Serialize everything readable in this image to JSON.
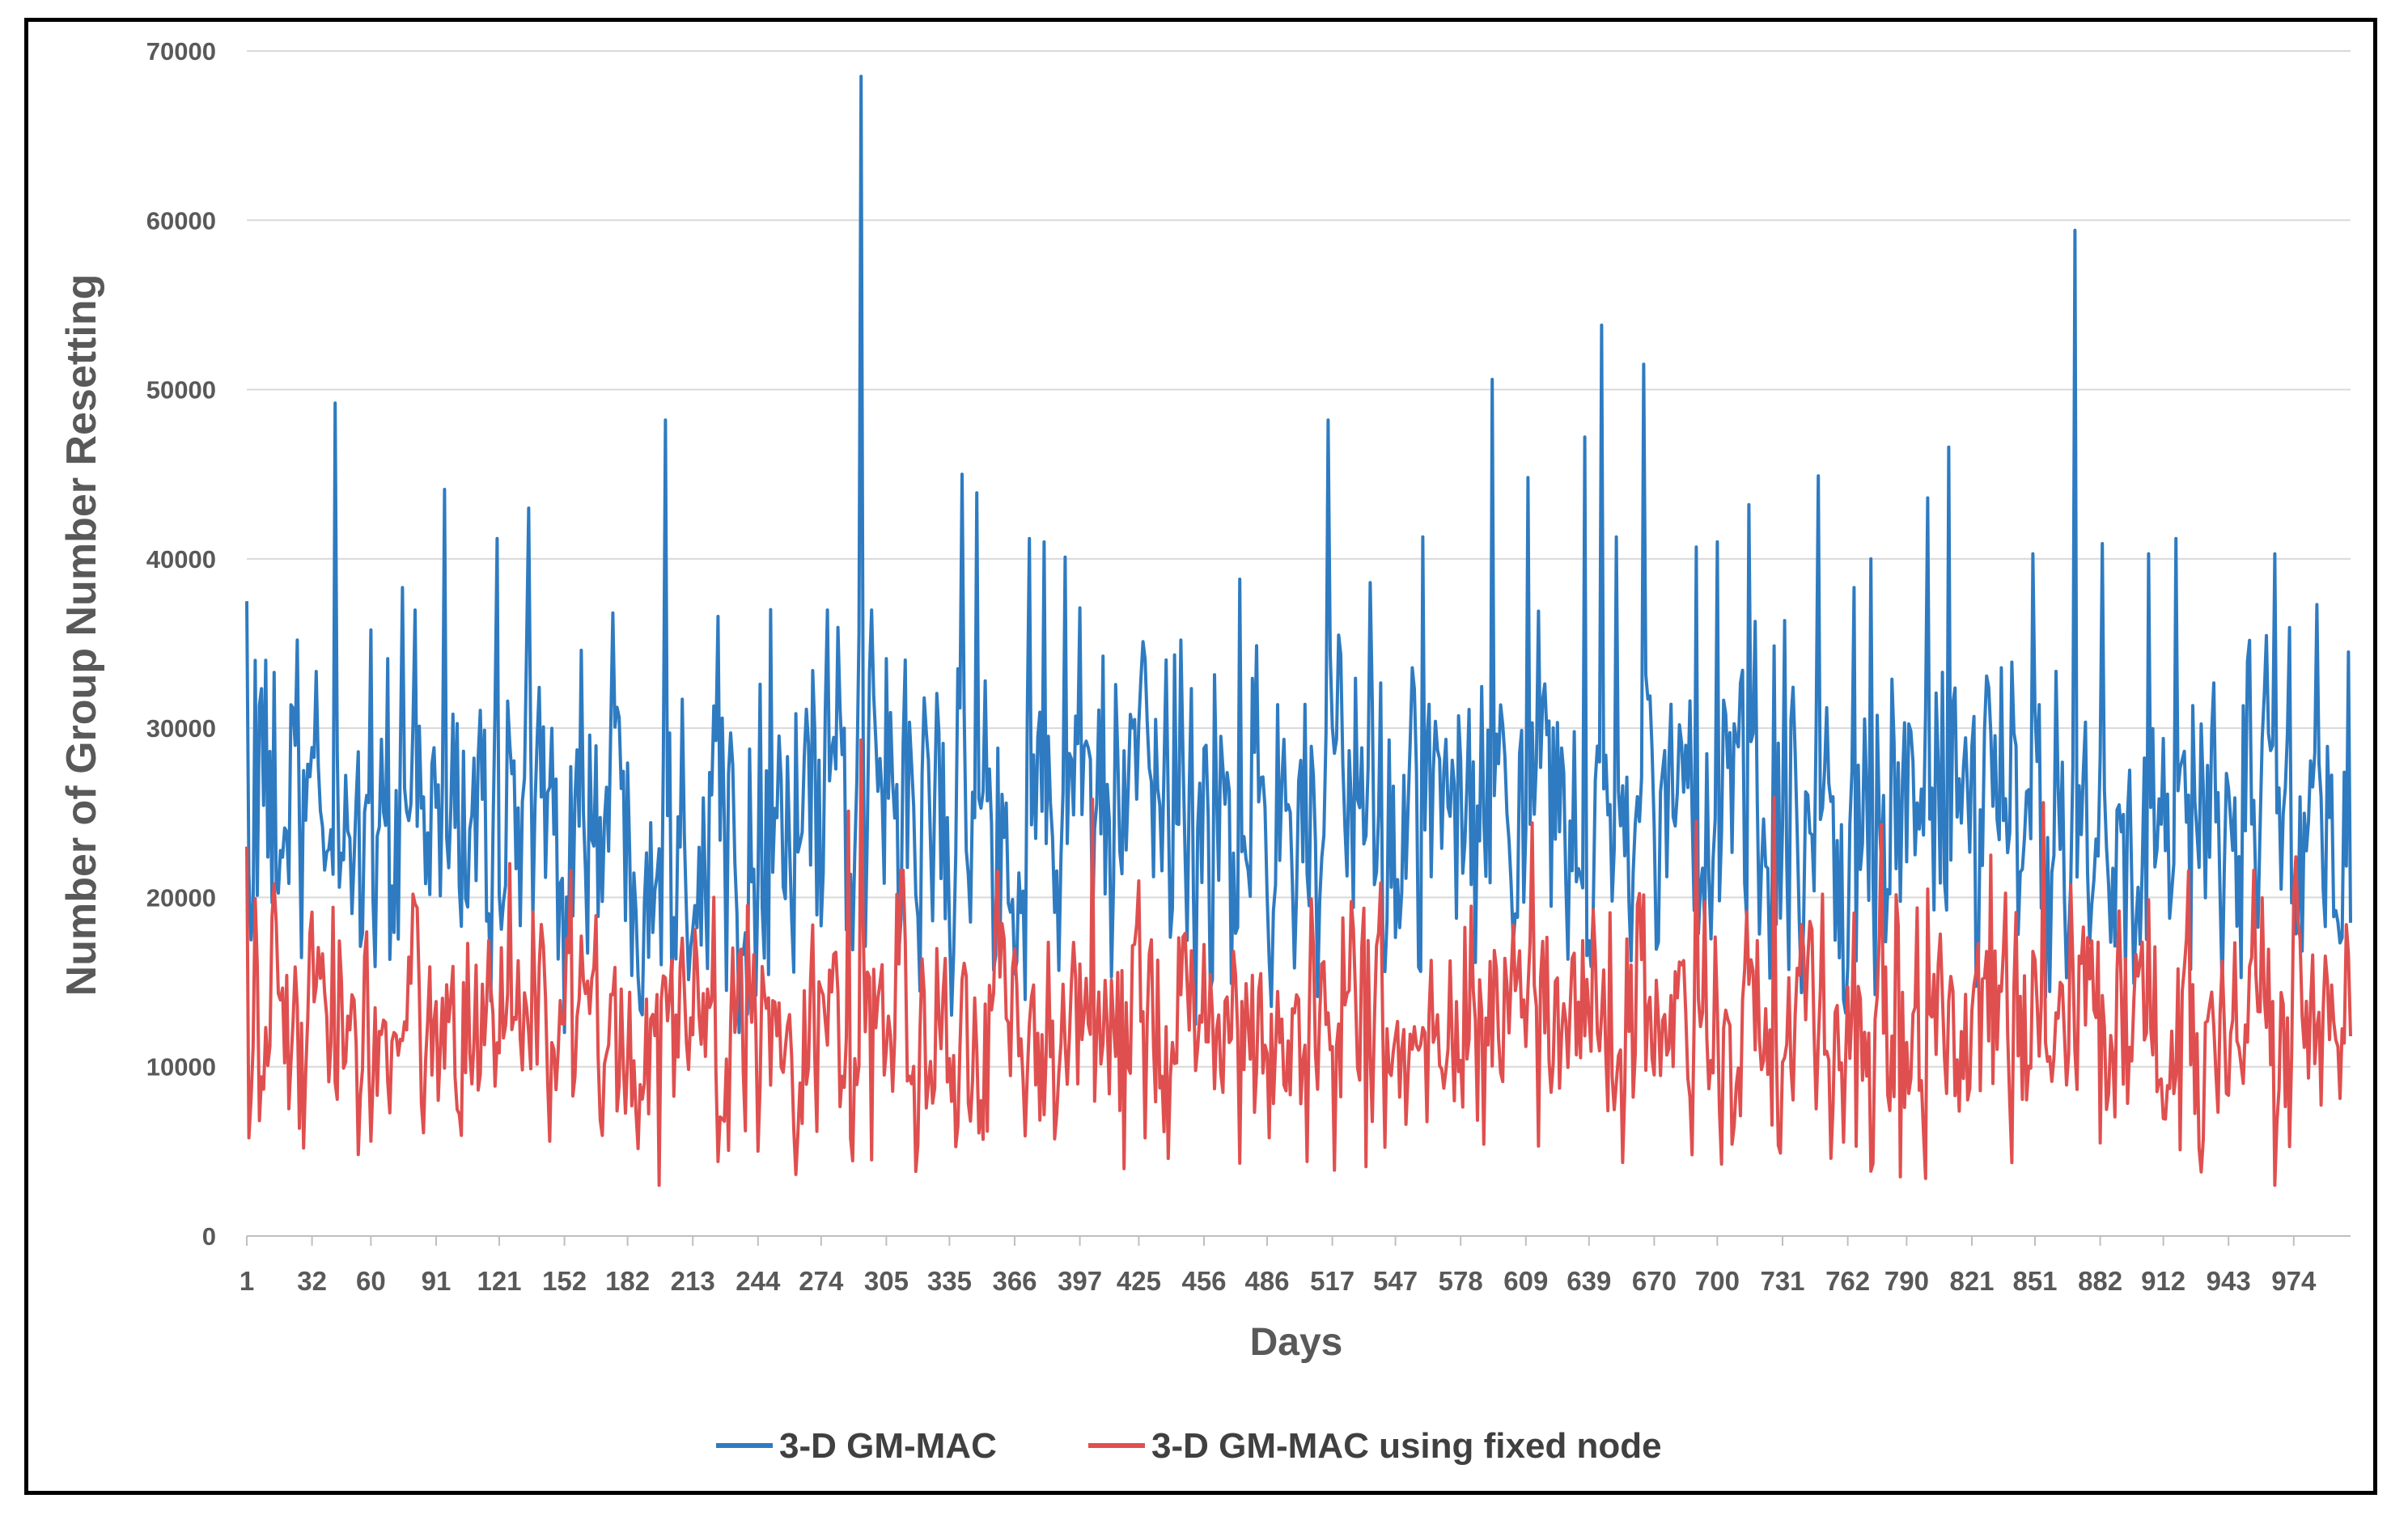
{
  "chart_data": {
    "type": "line",
    "title": "",
    "xlabel": "Days",
    "ylabel": "Number of Group Number Resetting",
    "ylim": [
      0,
      70000
    ],
    "yticks": [
      0,
      10000,
      20000,
      30000,
      40000,
      50000,
      60000,
      70000
    ],
    "xlim": [
      1,
      1000
    ],
    "xtick_labels": [
      "1",
      "32",
      "60",
      "91",
      "121",
      "152",
      "182",
      "213",
      "244",
      "274",
      "305",
      "335",
      "366",
      "397",
      "425",
      "456",
      "486",
      "517",
      "547",
      "578",
      "609",
      "639",
      "670",
      "700",
      "731",
      "762",
      "790",
      "821",
      "851",
      "882",
      "912",
      "943",
      "974"
    ],
    "grid": true,
    "legend_position": "bottom",
    "series": [
      {
        "name": "3-D GM-MAC",
        "color": "#2E7BC1",
        "mean": 24500,
        "spread": 4800,
        "keypoints": [
          [
            1,
            37500
          ],
          [
            3,
            17500
          ],
          [
            5,
            34000
          ],
          [
            43,
            49200
          ],
          [
            60,
            35800
          ],
          [
            75,
            38300
          ],
          [
            95,
            44100
          ],
          [
            120,
            41200
          ],
          [
            135,
            43000
          ],
          [
            160,
            34600
          ],
          [
            175,
            36800
          ],
          [
            200,
            48200
          ],
          [
            225,
            36600
          ],
          [
            250,
            37000
          ],
          [
            270,
            33400
          ],
          [
            293,
            68500
          ],
          [
            305,
            34100
          ],
          [
            341,
            45000
          ],
          [
            348,
            43900
          ],
          [
            373,
            41200
          ],
          [
            380,
            41000
          ],
          [
            390,
            40100
          ],
          [
            397,
            37100
          ],
          [
            445,
            35200
          ],
          [
            473,
            38800
          ],
          [
            515,
            48200
          ],
          [
            535,
            38600
          ],
          [
            560,
            41300
          ],
          [
            593,
            50600
          ],
          [
            610,
            44800
          ],
          [
            637,
            47200
          ],
          [
            645,
            53800
          ],
          [
            652,
            41300
          ],
          [
            665,
            51500
          ],
          [
            690,
            40700
          ],
          [
            700,
            41000
          ],
          [
            715,
            43200
          ],
          [
            748,
            44900
          ],
          [
            765,
            38300
          ],
          [
            773,
            40000
          ],
          [
            800,
            43600
          ],
          [
            810,
            46600
          ],
          [
            850,
            40300
          ],
          [
            870,
            59400
          ],
          [
            883,
            40900
          ],
          [
            905,
            40300
          ],
          [
            918,
            41200
          ],
          [
            965,
            40300
          ],
          [
            985,
            37300
          ],
          [
            1000,
            34500
          ],
          [
            1001,
            18500
          ]
        ]
      },
      {
        "name": "3-D GM-MAC using fixed node",
        "color": "#E04F4F",
        "mean": 12500,
        "spread": 3500,
        "keypoints": [
          [
            1,
            23000
          ],
          [
            2,
            5800
          ],
          [
            28,
            5200
          ],
          [
            60,
            5600
          ],
          [
            85,
            6100
          ],
          [
            126,
            22000
          ],
          [
            145,
            5600
          ],
          [
            197,
            3000
          ],
          [
            225,
            4400
          ],
          [
            287,
            25100
          ],
          [
            293,
            29300
          ],
          [
            298,
            4500
          ],
          [
            403,
            25800
          ],
          [
            428,
            5800
          ],
          [
            473,
            4300
          ],
          [
            505,
            4400
          ],
          [
            533,
            4100
          ],
          [
            612,
            24400
          ],
          [
            688,
            4800
          ],
          [
            690,
            24500
          ],
          [
            730,
            4900
          ],
          [
            727,
            25900
          ],
          [
            778,
            24300
          ],
          [
            787,
            3500
          ],
          [
            800,
            20500
          ],
          [
            830,
            22500
          ],
          [
            855,
            25600
          ],
          [
            882,
            5500
          ],
          [
            920,
            5100
          ],
          [
            965,
            3000
          ],
          [
            975,
            22400
          ],
          [
            1001,
            11800
          ]
        ]
      }
    ]
  }
}
